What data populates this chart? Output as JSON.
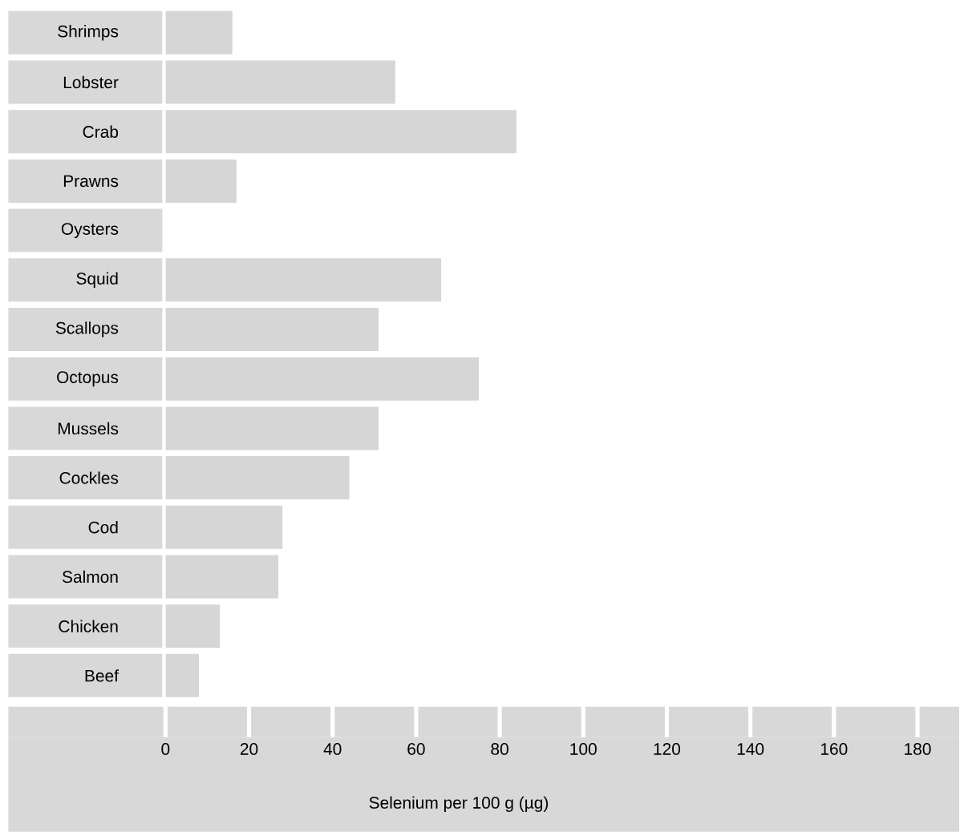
{
  "chart_data": {
    "type": "bar",
    "orientation": "horizontal",
    "categories": [
      "Shrimps",
      "Lobster",
      "Crab",
      "Prawns",
      "Oysters",
      "Squid",
      "Scallops",
      "Octopus",
      "Mussels",
      "Cockles",
      "Cod",
      "Salmon",
      "Chicken",
      "Beef"
    ],
    "values": [
      16,
      55,
      84,
      17,
      0,
      66,
      51,
      75,
      51,
      44,
      28,
      27,
      13,
      8
    ],
    "color": "#d7d6d7",
    "xlim": [
      0,
      180
    ],
    "xticks": [
      0,
      20,
      40,
      60,
      80,
      100,
      120,
      140,
      160,
      180
    ],
    "xlabel": "Selenium per 100 g (µg)"
  }
}
